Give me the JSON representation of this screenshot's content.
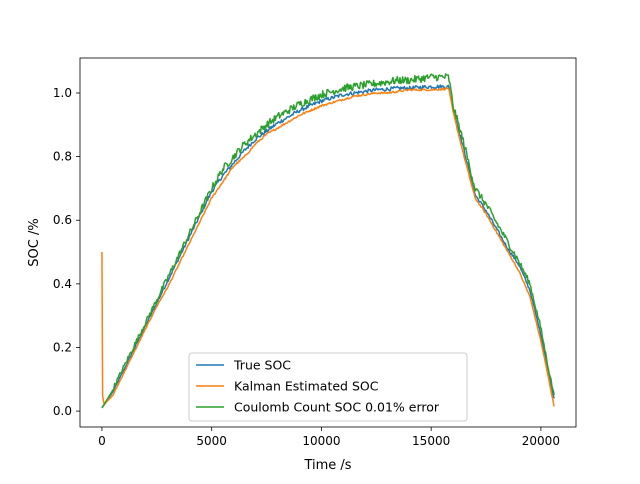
{
  "chart_data": {
    "type": "line",
    "title": "",
    "xlabel": "Time /s",
    "ylabel": "SOC /%",
    "xlim": [
      -1000,
      21600
    ],
    "ylim": [
      -0.05,
      1.11
    ],
    "xticks": [
      0,
      5000,
      10000,
      15000,
      20000
    ],
    "xtick_labels": [
      "0",
      "5000",
      "10000",
      "15000",
      "20000"
    ],
    "yticks": [
      0.0,
      0.2,
      0.4,
      0.6,
      0.8,
      1.0
    ],
    "ytick_labels": [
      "0.0",
      "0.2",
      "0.4",
      "0.6",
      "0.8",
      "1.0"
    ],
    "grid": false,
    "legend_position": "lower center",
    "series": [
      {
        "name": "True SOC",
        "color": "#1f77b4",
        "noise": 0.006,
        "x": [
          0,
          500,
          1000,
          1500,
          2000,
          2500,
          3000,
          3500,
          4000,
          4500,
          5000,
          5500,
          6000,
          6500,
          7000,
          7500,
          8000,
          8500,
          9000,
          9500,
          10000,
          10500,
          11000,
          11500,
          12000,
          12500,
          13000,
          13500,
          14000,
          14500,
          15000,
          15500,
          15800,
          16000,
          16500,
          17000,
          17500,
          18000,
          18500,
          19000,
          19500,
          20000,
          20300,
          20600
        ],
        "y": [
          0.01,
          0.06,
          0.13,
          0.2,
          0.27,
          0.34,
          0.41,
          0.48,
          0.55,
          0.62,
          0.69,
          0.74,
          0.78,
          0.82,
          0.855,
          0.88,
          0.905,
          0.925,
          0.945,
          0.96,
          0.975,
          0.985,
          0.995,
          1.0,
          1.005,
          1.01,
          1.012,
          1.015,
          1.015,
          1.018,
          1.02,
          1.02,
          1.02,
          0.95,
          0.82,
          0.68,
          0.63,
          0.57,
          0.51,
          0.46,
          0.38,
          0.24,
          0.14,
          0.04
        ]
      },
      {
        "name": "Kalman Estimated SOC",
        "color": "#ff7f0e",
        "noise": 0.003,
        "x": [
          0,
          30,
          100,
          500,
          1000,
          1500,
          2000,
          2500,
          3000,
          3500,
          4000,
          4500,
          5000,
          5500,
          6000,
          6500,
          7000,
          7500,
          8000,
          8500,
          9000,
          9500,
          10000,
          10500,
          11000,
          11500,
          12000,
          12500,
          13000,
          13500,
          14000,
          14500,
          15000,
          15500,
          15800,
          16000,
          16500,
          17000,
          17500,
          18000,
          18500,
          19000,
          19500,
          20000,
          20300,
          20600
        ],
        "y": [
          0.5,
          0.05,
          0.02,
          0.05,
          0.12,
          0.19,
          0.26,
          0.33,
          0.39,
          0.46,
          0.53,
          0.6,
          0.67,
          0.72,
          0.77,
          0.8,
          0.84,
          0.87,
          0.89,
          0.91,
          0.93,
          0.945,
          0.96,
          0.97,
          0.98,
          0.99,
          0.995,
          1.0,
          1.0,
          1.005,
          1.01,
          1.01,
          1.01,
          1.012,
          1.015,
          0.94,
          0.8,
          0.67,
          0.62,
          0.56,
          0.5,
          0.44,
          0.36,
          0.22,
          0.12,
          0.015
        ]
      },
      {
        "name": "Coulomb Count SOC 0.01% error",
        "color": "#2ca02c",
        "noise": 0.012,
        "x": [
          0,
          500,
          1000,
          1500,
          2000,
          2500,
          3000,
          3500,
          4000,
          4500,
          5000,
          5500,
          6000,
          6500,
          7000,
          7500,
          8000,
          8500,
          9000,
          9500,
          10000,
          10500,
          11000,
          11500,
          12000,
          12500,
          13000,
          13500,
          14000,
          14500,
          15000,
          15500,
          15800,
          16000,
          16500,
          17000,
          17500,
          18000,
          18500,
          19000,
          19500,
          20000,
          20300,
          20600
        ],
        "y": [
          0.01,
          0.07,
          0.14,
          0.21,
          0.28,
          0.35,
          0.42,
          0.49,
          0.56,
          0.63,
          0.7,
          0.76,
          0.8,
          0.84,
          0.87,
          0.9,
          0.925,
          0.945,
          0.965,
          0.98,
          0.995,
          1.005,
          1.015,
          1.02,
          1.025,
          1.03,
          1.035,
          1.04,
          1.04,
          1.045,
          1.05,
          1.05,
          1.05,
          0.96,
          0.84,
          0.7,
          0.65,
          0.59,
          0.53,
          0.47,
          0.4,
          0.26,
          0.15,
          0.05
        ]
      }
    ]
  }
}
